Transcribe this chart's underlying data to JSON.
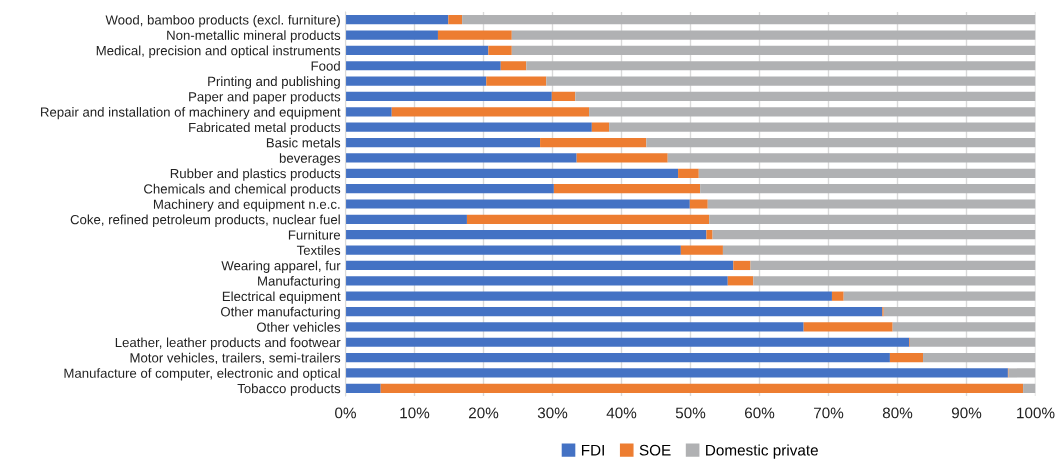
{
  "chart_data": {
    "type": "bar",
    "orientation": "horizontal",
    "stacked": true,
    "categories": [
      "Wood, bamboo products (excl. furniture)",
      "Non-metallic mineral products",
      "Medical, precision and optical instruments",
      "Food",
      "Printing and publishing",
      "Paper and paper products",
      "Repair and installation of machinery and equipment",
      "Fabricated metal products",
      "Basic metals",
      "beverages",
      "Rubber and plastics products",
      "Chemicals and chemical products",
      "Machinery and equipment n.e.c.",
      "Coke, refined petroleum products, nuclear fuel",
      "Furniture",
      "Textiles",
      "Wearing apparel, fur",
      "Manufacturing",
      "Electrical equipment",
      "Other manufacturing",
      "Other vehicles",
      "Leather, leather products and footwear",
      "Motor vehicles, trailers, semi-trailers",
      "Manufacture of computer, electronic and optical",
      "Tobacco products"
    ],
    "series": [
      {
        "name": "FDI",
        "color": "#4472c4",
        "values": [
          14.9,
          13.4,
          20.7,
          22.5,
          20.4,
          29.9,
          6.7,
          35.7,
          28.2,
          33.5,
          48.2,
          30.2,
          49.9,
          17.6,
          52.3,
          48.6,
          56.2,
          55.4,
          70.5,
          77.8,
          66.4,
          81.7,
          78.9,
          96.0,
          5.1
        ]
      },
      {
        "name": "SOE",
        "color": "#ed7d31",
        "values": [
          2.0,
          10.7,
          3.4,
          3.7,
          8.7,
          3.4,
          28.6,
          2.5,
          15.4,
          13.2,
          3.0,
          21.2,
          2.6,
          35.1,
          0.9,
          6.1,
          2.5,
          3.7,
          1.7,
          0.2,
          12.9,
          0.1,
          4.8,
          0.1,
          93.1
        ]
      },
      {
        "name": "Domestic private",
        "color": "#b0b1b3",
        "values": [
          83.1,
          75.9,
          75.9,
          73.8,
          70.9,
          66.7,
          64.7,
          61.8,
          56.4,
          53.3,
          48.8,
          48.6,
          47.5,
          47.3,
          46.8,
          45.3,
          41.3,
          40.9,
          27.8,
          22.0,
          20.7,
          18.2,
          16.3,
          3.9,
          1.8
        ]
      }
    ],
    "xlim": [
      0,
      100
    ],
    "xticks": [
      {
        "value": 0,
        "label": "0%"
      },
      {
        "value": 10,
        "label": "10%"
      },
      {
        "value": 20,
        "label": "20%"
      },
      {
        "value": 30,
        "label": "30%"
      },
      {
        "value": 40,
        "label": "40%"
      },
      {
        "value": 50,
        "label": "50%"
      },
      {
        "value": 60,
        "label": "60%"
      },
      {
        "value": 70,
        "label": "70%"
      },
      {
        "value": 80,
        "label": "80%"
      },
      {
        "value": 90,
        "label": "90%"
      },
      {
        "value": 100,
        "label": "100%"
      }
    ],
    "grid": "x",
    "legend": "bottom"
  }
}
